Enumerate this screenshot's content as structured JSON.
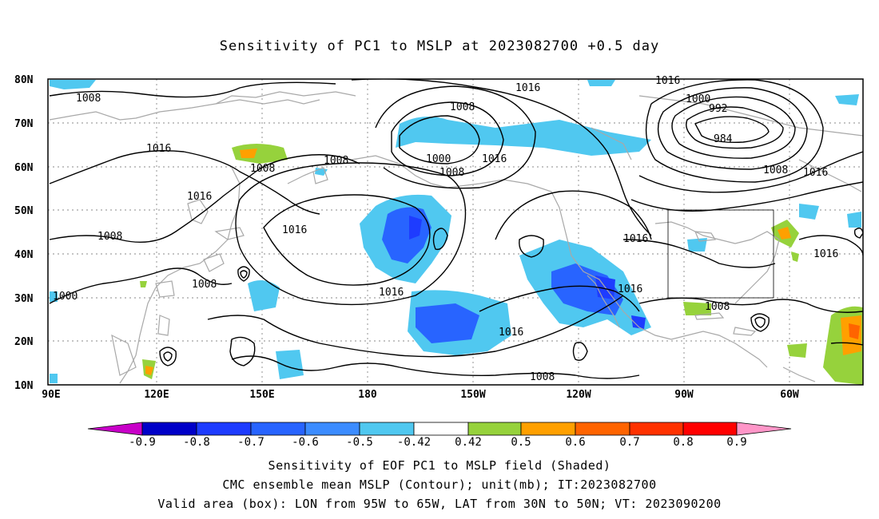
{
  "title": "Sensitivity of PC1 to MSLP at 2023082700 +0.5 day",
  "map": {
    "lat_labels": [
      "80N",
      "70N",
      "60N",
      "50N",
      "40N",
      "30N",
      "20N",
      "10N"
    ],
    "lon_labels": [
      "90E",
      "120E",
      "150E",
      "180",
      "150W",
      "120W",
      "90W",
      "60W"
    ],
    "valid_box": {
      "lon_from": "95W",
      "lon_to": "65W",
      "lat_from": "30N",
      "lat_to": "50N"
    },
    "contour_labels": [
      "1008",
      "1016",
      "1008",
      "1016",
      "1016",
      "1008",
      "1016",
      "1008",
      "1008",
      "1000",
      "1016",
      "1008",
      "1016",
      "1016",
      "1016",
      "1008",
      "1000",
      "992",
      "984",
      "1008",
      "1016",
      "1016",
      "1008",
      "1016",
      "1000",
      "1008",
      "1016"
    ]
  },
  "colorbar": {
    "labels": [
      "-0.9",
      "-0.8",
      "-0.7",
      "-0.6",
      "-0.5",
      "-0.42",
      "0.42",
      "0.5",
      "0.6",
      "0.7",
      "0.8",
      "0.9"
    ],
    "colors": [
      "#c800c8",
      "#0000c8",
      "#1e3cff",
      "#2864ff",
      "#3c8cff",
      "#50c8f0",
      "#ffffff",
      "#96d23c",
      "#ffa000",
      "#ff6400",
      "#ff3200",
      "#ff0000",
      "#ff96c8"
    ]
  },
  "captions": [
    "Sensitivity of EOF PC1 to MSLP field (Shaded)",
    "CMC ensemble mean MSLP (Contour); unit(mb); IT:2023082700",
    "Valid area (box): LON from 95W to 65W, LAT from 30N to 50N; VT: 2023090200"
  ]
}
